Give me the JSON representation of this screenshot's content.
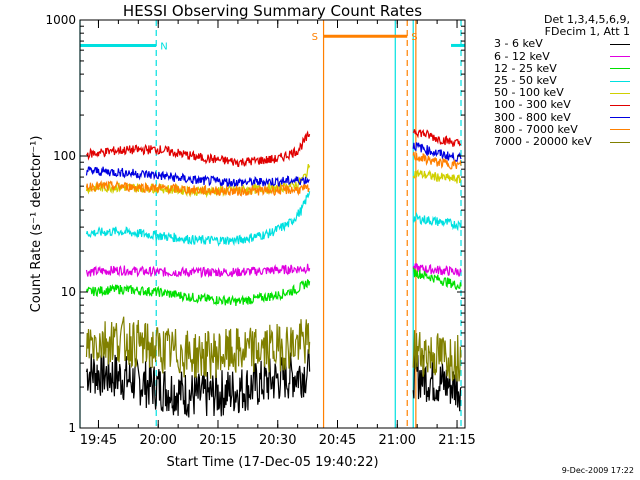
{
  "chart_data": {
    "type": "line",
    "title": "HESSI Observing Summary Count Rates",
    "xlabel": "Start Time (17-Dec-05 19:40:22)",
    "ylabel": "Count Rate (s⁻¹ detector⁻¹)",
    "y_scale": "log",
    "ylim": [
      1,
      1000
    ],
    "y_ticks": [
      "1",
      "10",
      "100",
      "1000"
    ],
    "x_start": "19:40:22",
    "xlim": [
      "19:40:22",
      "21:17:00"
    ],
    "x_ticks": [
      "19:45",
      "20:00",
      "20:15",
      "20:30",
      "20:45",
      "21:00",
      "21:15"
    ],
    "legend_header": [
      "Det 1,3,4,5,6,9,",
      "FDecim 1, Att 1"
    ],
    "legend_position": "right",
    "series": [
      {
        "name": "3 - 6 keV",
        "color": "#000000",
        "segments": [
          {
            "x": [
              "19:42",
              "19:50",
              "20:00",
              "20:10",
              "20:20",
              "20:30",
              "20:38"
            ],
            "y": [
              2.6,
              2.4,
              2.0,
              1.7,
              1.9,
              2.3,
              2.6
            ]
          },
          {
            "x": [
              "21:04",
              "21:10",
              "21:16"
            ],
            "y": [
              2.5,
              2.2,
              2.0
            ]
          }
        ]
      },
      {
        "name": "6 - 12 keV",
        "color": "#e000e0",
        "segments": [
          {
            "x": [
              "19:42",
              "19:50",
              "20:00",
              "20:10",
              "20:20",
              "20:30",
              "20:38"
            ],
            "y": [
              14,
              14.5,
              14,
              14,
              14,
              14.5,
              15
            ]
          },
          {
            "x": [
              "21:04",
              "21:10",
              "21:16"
            ],
            "y": [
              15,
              14.5,
              14
            ]
          }
        ]
      },
      {
        "name": "12 - 25 keV",
        "color": "#00e000",
        "segments": [
          {
            "x": [
              "19:42",
              "19:50",
              "20:00",
              "20:10",
              "20:20",
              "20:30",
              "20:35",
              "20:38"
            ],
            "y": [
              10,
              10.5,
              10,
              9,
              8.5,
              9.5,
              10.5,
              12
            ]
          },
          {
            "x": [
              "21:04",
              "21:10",
              "21:16"
            ],
            "y": [
              14,
              12.5,
              11
            ]
          }
        ]
      },
      {
        "name": "25 - 50 keV",
        "color": "#00e0e0",
        "segments": [
          {
            "x": [
              "19:42",
              "19:50",
              "20:00",
              "20:10",
              "20:20",
              "20:28",
              "20:33",
              "20:36",
              "20:38"
            ],
            "y": [
              27,
              28,
              26,
              24,
              24,
              27,
              32,
              40,
              55
            ]
          },
          {
            "x": [
              "21:04",
              "21:10",
              "21:16"
            ],
            "y": [
              35,
              33,
              31
            ]
          }
        ]
      },
      {
        "name": "50 - 100 keV",
        "color": "#d0d000",
        "segments": [
          {
            "x": [
              "19:42",
              "19:50",
              "20:00",
              "20:10",
              "20:20",
              "20:30",
              "20:35",
              "20:37",
              "20:38"
            ],
            "y": [
              58,
              59,
              58,
              55,
              56,
              58,
              62,
              72,
              85
            ]
          },
          {
            "x": [
              "21:04",
              "21:10",
              "21:16"
            ],
            "y": [
              75,
              70,
              67
            ]
          }
        ]
      },
      {
        "name": "100 - 300 keV",
        "color": "#e00000",
        "segments": [
          {
            "x": [
              "19:42",
              "19:50",
              "20:00",
              "20:10",
              "20:20",
              "20:30",
              "20:35",
              "20:38"
            ],
            "y": [
              103,
              110,
              112,
              98,
              90,
              95,
              110,
              145
            ]
          },
          {
            "x": [
              "21:04",
              "21:10",
              "21:16"
            ],
            "y": [
              155,
              135,
              122
            ]
          }
        ]
      },
      {
        "name": "300 - 800 keV",
        "color": "#0000e0",
        "segments": [
          {
            "x": [
              "19:42",
              "19:50",
              "20:00",
              "20:10",
              "20:20",
              "20:30",
              "20:38"
            ],
            "y": [
              78,
              76,
              72,
              66,
              64,
              65,
              67
            ]
          },
          {
            "x": [
              "21:04",
              "21:10",
              "21:16"
            ],
            "y": [
              120,
              105,
              95
            ]
          }
        ]
      },
      {
        "name": "800 - 7000 keV",
        "color": "#ff8000",
        "segments": [
          {
            "x": [
              "19:42",
              "19:50",
              "20:00",
              "20:10",
              "20:20",
              "20:30",
              "20:38"
            ],
            "y": [
              60,
              60,
              58,
              56,
              55,
              56,
              57
            ]
          },
          {
            "x": [
              "21:04",
              "21:10",
              "21:16"
            ],
            "y": [
              100,
              90,
              85
            ]
          }
        ]
      },
      {
        "name": "7000 - 20000 keV",
        "color": "#808000",
        "segments": [
          {
            "x": [
              "19:42",
              "19:50",
              "20:00",
              "20:10",
              "20:20",
              "20:30",
              "20:38"
            ],
            "y": [
              4.2,
              4.5,
              3.8,
              3.4,
              3.6,
              3.9,
              4.3
            ]
          },
          {
            "x": [
              "21:04",
              "21:10",
              "21:16"
            ],
            "y": [
              3.7,
              3.4,
              3.3
            ]
          }
        ]
      }
    ],
    "annotations": [
      {
        "label": "N",
        "type": "night",
        "color": "#00e0e0",
        "from": "19:40:22",
        "to": "19:59:30",
        "y": 650,
        "end_style": "dashed"
      },
      {
        "label": "N",
        "type": "night",
        "color": "#00e0e0",
        "from": "21:16:00",
        "to": "21:16:00",
        "y": 650,
        "end_style": "dashed"
      },
      {
        "label": "S",
        "type": "saa",
        "color": "#ff8000",
        "from": "20:41:30",
        "to": "21:02:30",
        "y": 760,
        "end_style": "dashed"
      }
    ],
    "vertical_markers": [
      {
        "x": "19:40:22",
        "color": "#00e0e0",
        "style": "solid"
      },
      {
        "x": "19:59:30",
        "color": "#00e0e0",
        "style": "dashed"
      },
      {
        "x": "20:41:30",
        "color": "#ff8000",
        "style": "solid"
      },
      {
        "x": "20:59:30",
        "color": "#00e0e0",
        "style": "solid"
      },
      {
        "x": "21:02:30",
        "color": "#ff8000",
        "style": "dashed"
      },
      {
        "x": "21:04:40",
        "color": "#ff8000",
        "style": "solid"
      },
      {
        "x": "21:04:00",
        "color": "#00e0e0",
        "style": "solid"
      },
      {
        "x": "21:16:00",
        "color": "#00e0e0",
        "style": "dashed"
      }
    ]
  },
  "footer_stamp": "9-Dec-2009 17:22"
}
